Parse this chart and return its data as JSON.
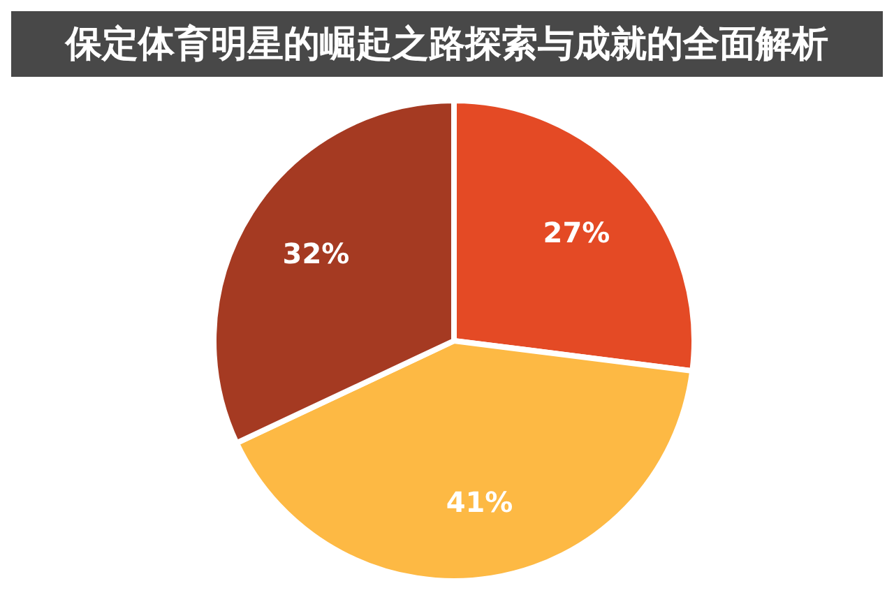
{
  "chart_data": {
    "type": "pie",
    "title": "保定体育明星的崛起之路探索与成就的全面解析",
    "categories": [
      null,
      null,
      null
    ],
    "values": [
      27,
      41,
      32
    ],
    "colors": [
      "#e44a25",
      "#fdb944",
      "#a53a22"
    ],
    "value_labels": [
      "27%",
      "41%",
      "32%"
    ],
    "legend": false
  }
}
